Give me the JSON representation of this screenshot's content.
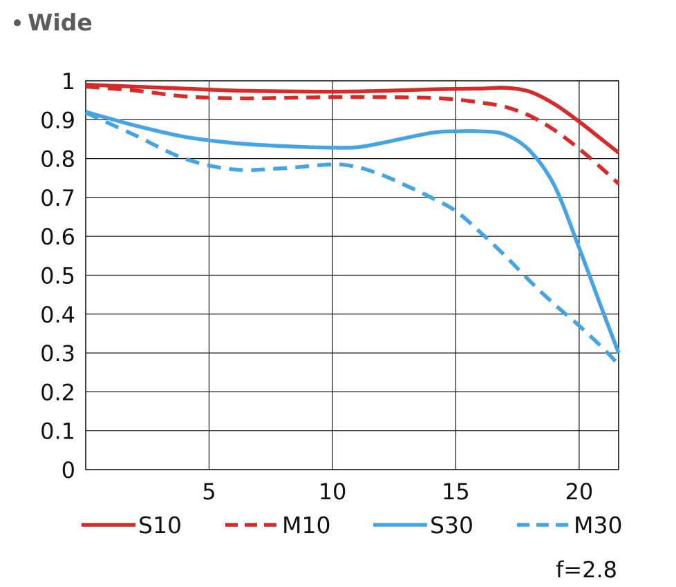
{
  "header": {
    "title": "Wide"
  },
  "chart_data": {
    "type": "line",
    "title": "Wide",
    "xlabel": "",
    "ylabel": "",
    "x_ticks": [
      "5",
      "10",
      "15",
      "20"
    ],
    "y_ticks": [
      "0",
      "0.1",
      "0.2",
      "0.3",
      "0.4",
      "0.5",
      "0.6",
      "0.7",
      "0.8",
      "0.9",
      "1"
    ],
    "xlim": [
      0,
      21.6
    ],
    "ylim": [
      0,
      1
    ],
    "grid": true,
    "legend_position": "bottom",
    "annotation": "f=2.8",
    "series": [
      {
        "name": "S10",
        "color": "#d52b2b",
        "dash": "solid",
        "x": [
          0,
          2,
          4,
          6,
          8,
          10,
          12,
          14,
          16,
          17,
          18,
          19,
          20,
          21,
          21.6
        ],
        "y": [
          0.99,
          0.985,
          0.98,
          0.975,
          0.973,
          0.972,
          0.974,
          0.978,
          0.98,
          0.982,
          0.972,
          0.94,
          0.895,
          0.845,
          0.815
        ]
      },
      {
        "name": "M10",
        "color": "#d52b2b",
        "dash": "dashed",
        "x": [
          0,
          2,
          4,
          6,
          8,
          10,
          12,
          14,
          15,
          16,
          17,
          18,
          19,
          20,
          21,
          21.6
        ],
        "y": [
          0.985,
          0.975,
          0.96,
          0.955,
          0.956,
          0.958,
          0.958,
          0.956,
          0.952,
          0.944,
          0.933,
          0.91,
          0.873,
          0.825,
          0.77,
          0.735
        ]
      },
      {
        "name": "S30",
        "color": "#47a4e2",
        "dash": "solid",
        "x": [
          0,
          2,
          4,
          6,
          8,
          10,
          11,
          12,
          14,
          15,
          16,
          17,
          18,
          19,
          20,
          21,
          21.6
        ],
        "y": [
          0.92,
          0.885,
          0.856,
          0.84,
          0.832,
          0.828,
          0.829,
          0.84,
          0.866,
          0.87,
          0.87,
          0.862,
          0.82,
          0.73,
          0.57,
          0.4,
          0.3
        ]
      },
      {
        "name": "M30",
        "color": "#47a4e2",
        "dash": "dashed",
        "x": [
          0,
          2,
          4,
          6,
          8,
          10,
          11,
          12,
          13,
          14,
          15,
          16,
          17,
          18,
          19,
          20,
          21,
          21.6
        ],
        "y": [
          0.918,
          0.86,
          0.8,
          0.772,
          0.775,
          0.785,
          0.778,
          0.758,
          0.73,
          0.7,
          0.665,
          0.61,
          0.55,
          0.485,
          0.425,
          0.37,
          0.31,
          0.27
        ]
      }
    ]
  }
}
